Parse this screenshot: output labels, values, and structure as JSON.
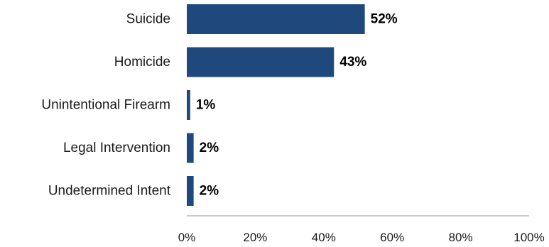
{
  "chart_data": {
    "type": "bar",
    "orientation": "horizontal",
    "title": "",
    "xlabel": "",
    "ylabel": "",
    "categories": [
      "Suicide",
      "Homicide",
      "Unintentional Firearm",
      "Legal Intervention",
      "Undetermined Intent"
    ],
    "values": [
      52,
      43,
      1,
      2,
      2
    ],
    "value_labels": [
      "52%",
      "43%",
      "1%",
      "2%",
      "2%"
    ],
    "xlim": [
      0,
      100
    ],
    "xticks": [
      0,
      20,
      40,
      60,
      80,
      100
    ],
    "xtick_labels": [
      "0%",
      "20%",
      "40%",
      "60%",
      "80%",
      "100%"
    ],
    "grid": false,
    "legend": "none",
    "bar_color": "#1f497d"
  }
}
